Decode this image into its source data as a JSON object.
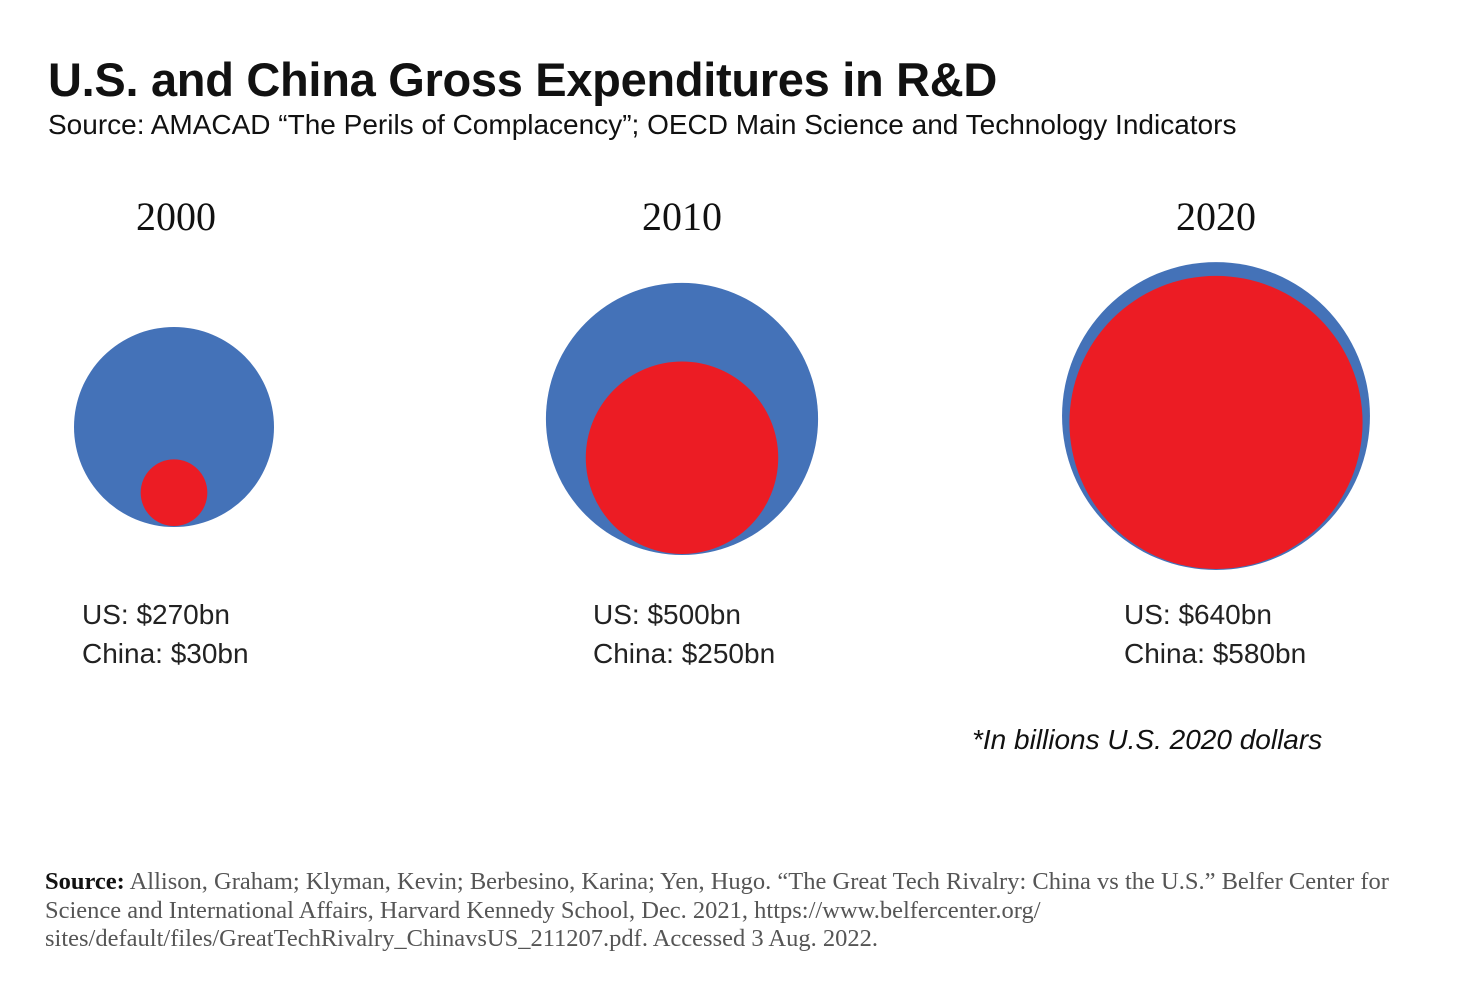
{
  "chart_data": {
    "type": "bubble",
    "title": "U.S. and China Gross Expenditures in R&D",
    "subtitle": "Source: AMACAD “The Perils of Complacency”; OECD Main Science and Technology Indicators",
    "unit_note": "*In billions U.S. 2020 dollars",
    "series": [
      {
        "name": "US",
        "color": "#4472b8"
      },
      {
        "name": "China",
        "color": "#ec1c24"
      }
    ],
    "panels": [
      {
        "year": "2000",
        "us_value": 270,
        "china_value": 30,
        "us_label": "US: $270bn",
        "china_label": "China: $30bn"
      },
      {
        "year": "2010",
        "us_value": 500,
        "china_value": 250,
        "us_label": "US: $500bn",
        "china_label": "China: $250bn"
      },
      {
        "year": "2020",
        "us_value": 640,
        "china_value": 580,
        "us_label": "US: $640bn",
        "china_label": "China: $580bn"
      }
    ]
  },
  "citation": {
    "label": "Source:",
    "text": " Allison, Graham; Klyman, Kevin; Berbesino, Karina; Yen, Hugo. “The Great Tech Rivalry: China vs the U.S.” Belfer Center for Science and International Affairs, Harvard Kennedy School, Dec. 2021, https://www.belfercenter.org/ sites/default/files/GreatTechRivalry_ChinavsUS_211207.pdf. Accessed 3 Aug. 2022."
  }
}
